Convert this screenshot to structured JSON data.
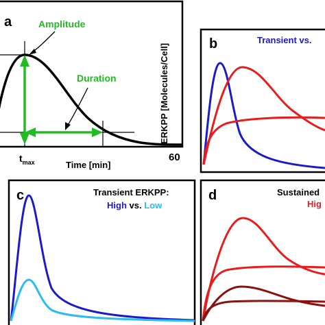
{
  "chart_data": [
    {
      "type": "line",
      "panel_label": "a",
      "xlabel": "Time [min]",
      "ylabel": "ERKPP [Molecules/Cell]",
      "tick_labels": [
        "t",
        "max",
        "60"
      ],
      "annotations": [
        "Amplitude",
        "Duration"
      ],
      "colors": {
        "curve": "#000000",
        "annotation": "#22bb22"
      }
    },
    {
      "type": "line",
      "panel_label": "b",
      "title": "Transient vs.",
      "colors": {
        "title": "#1a1acc",
        "transient": "#1a1acc",
        "sustained": "#e81c1c"
      }
    },
    {
      "type": "line",
      "panel_label": "c",
      "title": "Transient ERKPP:",
      "subtitle": [
        "High",
        "vs.",
        "Low"
      ],
      "colors": {
        "high": "#1a1acc",
        "low": "#2bbcee"
      }
    },
    {
      "type": "line",
      "panel_label": "d",
      "title": "Sustained",
      "subtitle": "Hig",
      "colors": {
        "high": "#e81c1c",
        "low": "#8b1111"
      }
    }
  ]
}
